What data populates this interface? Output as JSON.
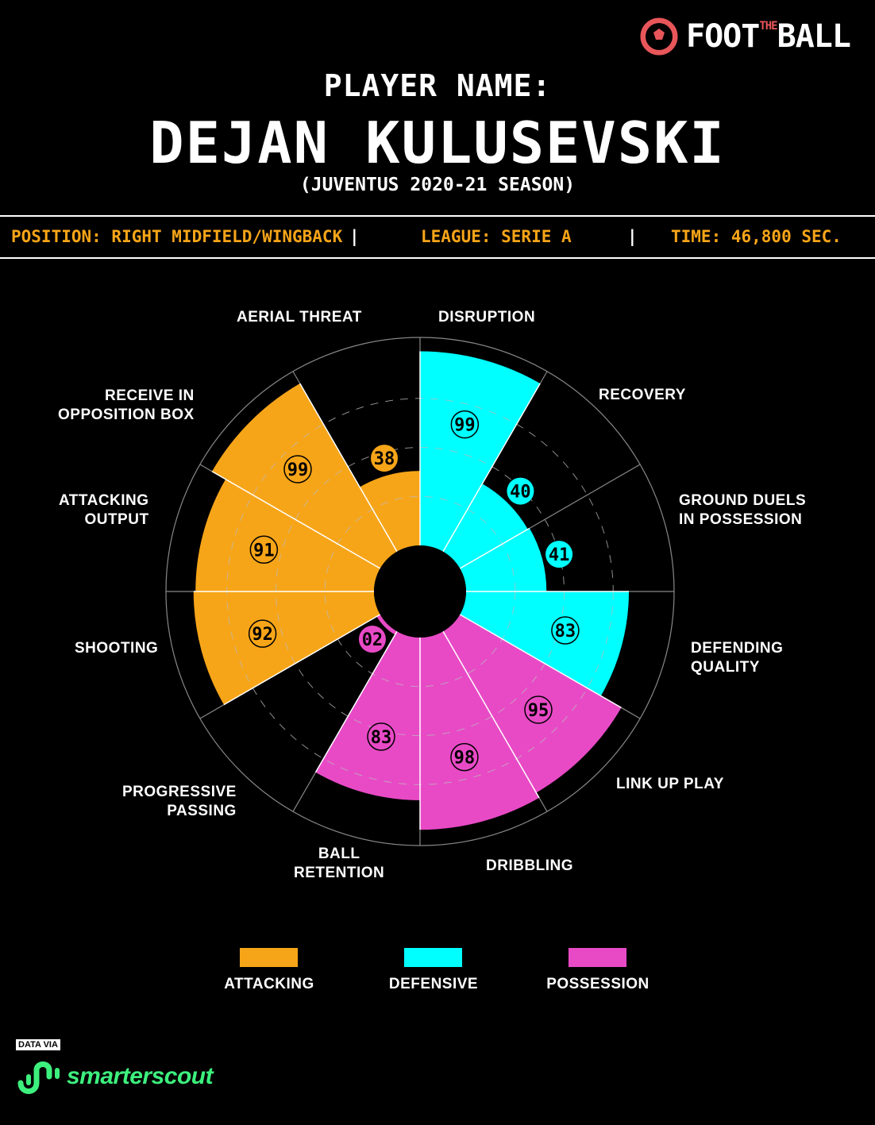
{
  "brand": {
    "logo_left": "FOOT",
    "logo_small": "THE",
    "logo_right": "BALL",
    "accent": "#e8565a"
  },
  "header": {
    "label": "PLAYER NAME:",
    "player": "DEJAN KULUSEVSKI",
    "season": "(JUVENTUS 2020-21 SEASON)"
  },
  "info": {
    "position": "POSITION: RIGHT MIDFIELD/WINGBACK",
    "league": "LEAGUE: SERIE A",
    "time": "TIME: 46,800 SEC.",
    "separator": "|"
  },
  "colors": {
    "attacking": "#f7a518",
    "defensive": "#00ffff",
    "possession": "#e84ac6",
    "info": "#f7a518"
  },
  "chart_data": {
    "type": "polar-bar",
    "scale": [
      0,
      100
    ],
    "grid": "dashed rings at 25, 50, 75",
    "categories": [
      {
        "label": "DISRUPTION",
        "value": 99,
        "value_label": "99",
        "group": "defensive"
      },
      {
        "label": "RECOVERY",
        "value": 40,
        "value_label": "40",
        "group": "defensive"
      },
      {
        "label": "GROUND DUELS\nIN POSSESSION",
        "value": 41,
        "value_label": "41",
        "group": "defensive"
      },
      {
        "label": "DEFENDING\nQUALITY",
        "value": 83,
        "value_label": "83",
        "group": "defensive"
      },
      {
        "label": "LINK UP PLAY",
        "value": 95,
        "value_label": "95",
        "group": "possession"
      },
      {
        "label": "DRIBBLING",
        "value": 98,
        "value_label": "98",
        "group": "possession"
      },
      {
        "label": "BALL\nRETENTION",
        "value": 83,
        "value_label": "83",
        "group": "possession"
      },
      {
        "label": "PROGRESSIVE\nPASSING",
        "value": 2,
        "value_label": "02",
        "group": "possession"
      },
      {
        "label": "SHOOTING",
        "value": 92,
        "value_label": "92",
        "group": "attacking"
      },
      {
        "label": "ATTACKING\nOUTPUT",
        "value": 91,
        "value_label": "91",
        "group": "attacking"
      },
      {
        "label": "RECEIVE IN\nOPPOSITION BOX",
        "value": 99,
        "value_label": "99",
        "group": "attacking"
      },
      {
        "label": "AERIAL THREAT",
        "value": 38,
        "value_label": "38",
        "group": "attacking"
      }
    ],
    "legend": [
      {
        "name": "ATTACKING",
        "group": "attacking"
      },
      {
        "name": "DEFENSIVE",
        "group": "defensive"
      },
      {
        "name": "POSSESSION",
        "group": "possession"
      }
    ]
  },
  "footer": {
    "data_via": "DATA VIA",
    "provider": "smarterscout",
    "provider_color": "#3df07d"
  }
}
